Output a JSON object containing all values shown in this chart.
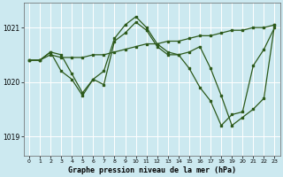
{
  "background_color": "#cce9f0",
  "grid_color": "#ffffff",
  "line_color": "#2d5a1b",
  "title": "Graphe pression niveau de la mer (hPa)",
  "xlim": [
    -0.5,
    23.5
  ],
  "ylim": [
    1018.65,
    1021.45
  ],
  "yticks": [
    1019,
    1020,
    1021
  ],
  "xticks": [
    0,
    1,
    2,
    3,
    4,
    5,
    6,
    7,
    8,
    9,
    10,
    11,
    12,
    13,
    14,
    15,
    16,
    17,
    18,
    19,
    20,
    21,
    22,
    23
  ],
  "series1": [
    1020.4,
    1020.4,
    1020.5,
    1020.45,
    1020.45,
    1020.45,
    1020.5,
    1020.5,
    1020.55,
    1020.6,
    1020.65,
    1020.7,
    1020.7,
    1020.75,
    1020.75,
    1020.8,
    1020.85,
    1020.85,
    1020.9,
    1020.95,
    1020.95,
    1021.0,
    1021.0,
    1021.05
  ],
  "series2": [
    1020.4,
    1020.4,
    1020.55,
    1020.2,
    1020.05,
    1019.75,
    1020.05,
    1020.2,
    1020.8,
    1021.05,
    1021.2,
    1021.0,
    1020.7,
    1020.55,
    1020.5,
    1020.25,
    1019.9,
    1019.65,
    1019.2,
    1019.4,
    1019.45,
    1020.3,
    1020.6,
    1021.0
  ],
  "series3": [
    1020.4,
    1020.4,
    1020.55,
    1020.5,
    1020.15,
    1019.8,
    1020.05,
    1019.95,
    1020.75,
    1020.9,
    1021.1,
    1020.95,
    1020.65,
    1020.5,
    1020.5,
    1020.55,
    1020.65,
    1020.25,
    1019.75,
    1019.2,
    1019.35,
    1019.5,
    1019.7,
    1021.05
  ]
}
